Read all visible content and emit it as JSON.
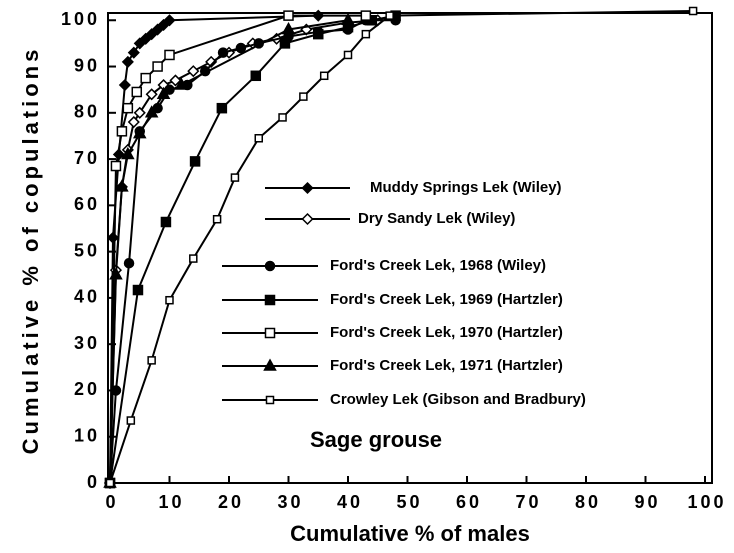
{
  "chart_data": {
    "type": "line",
    "xlabel": "Cumulative % of males",
    "ylabel": "Cumulative % of copulations",
    "annotation": "Sage grouse",
    "xlim": [
      0,
      100
    ],
    "ylim": [
      0,
      102
    ],
    "xticks": [
      0,
      10,
      20,
      30,
      40,
      50,
      60,
      70,
      80,
      90,
      100
    ],
    "yticks": [
      0,
      10,
      20,
      30,
      40,
      50,
      60,
      70,
      80,
      90,
      100
    ],
    "series": [
      {
        "name": "Muddy Springs Lek (Wiley)",
        "color": "#000000",
        "marker": "diamond-filled",
        "x": [
          0,
          0.5,
          1.5,
          2.5,
          3,
          4,
          5,
          6,
          7,
          8,
          9,
          10,
          35
        ],
        "values": [
          0,
          53,
          71,
          86,
          91,
          93,
          95,
          96,
          97,
          98,
          99,
          100,
          101
        ]
      },
      {
        "name": "Dry Sandy Lek (Wiley)",
        "color": "#000000",
        "marker": "diamond-open",
        "x": [
          0,
          1,
          2,
          3,
          4,
          5,
          7,
          9,
          11,
          14,
          17,
          20,
          24,
          28,
          33,
          40,
          45
        ],
        "values": [
          0,
          46,
          64,
          72,
          78,
          80,
          84,
          86,
          87,
          89,
          91,
          93,
          95,
          96,
          98,
          99.5,
          100
        ]
      },
      {
        "name": "Ford's Creek Lek, 1968 (Wiley)",
        "color": "#000000",
        "marker": "circle-filled",
        "x": [
          0,
          1,
          3.2,
          5,
          8,
          10,
          13,
          16,
          19,
          22,
          25,
          30,
          35,
          40,
          43,
          48
        ],
        "values": [
          0,
          20,
          47.5,
          76,
          81,
          85,
          86,
          89,
          93,
          94,
          95,
          96.5,
          97.5,
          98,
          100,
          100
        ]
      },
      {
        "name": "Ford's Creek Lek, 1969 (Hartzler)",
        "color": "#000000",
        "marker": "square-filled",
        "x": [
          0,
          4.7,
          9.4,
          14.3,
          18.8,
          24.5,
          29.4,
          35,
          40,
          44,
          48
        ],
        "values": [
          0,
          41.7,
          56.4,
          69.5,
          81,
          88,
          95,
          97,
          98.5,
          100,
          101
        ]
      },
      {
        "name": "Ford's Creek Lek, 1970 (Hartzler)",
        "color": "#000000",
        "marker": "square-open",
        "x": [
          0,
          1,
          2,
          3,
          4.5,
          6,
          8,
          10,
          30,
          43
        ],
        "values": [
          0,
          68.5,
          76,
          81,
          84.5,
          87.5,
          90,
          92.5,
          101,
          101
        ]
      },
      {
        "name": "Ford's Creek Lek, 1971 (Hartzler)",
        "color": "#000000",
        "marker": "triangle-filled",
        "x": [
          0,
          1,
          2,
          3,
          5,
          7,
          9,
          12,
          30,
          40
        ],
        "values": [
          0,
          45,
          64,
          71,
          75.5,
          80,
          84,
          86,
          98,
          100
        ]
      },
      {
        "name": "Crowley Lek (Gibson and Bradbury)",
        "color": "#000000",
        "marker": "small-square-open",
        "x": [
          0,
          3.5,
          7,
          10,
          14,
          18,
          21,
          25,
          29,
          32.5,
          36,
          40,
          43,
          47,
          98
        ],
        "values": [
          0,
          13.5,
          26.5,
          39.5,
          48.5,
          57,
          66,
          74.5,
          79,
          83.5,
          88,
          92.5,
          97,
          101,
          102
        ]
      }
    ]
  }
}
